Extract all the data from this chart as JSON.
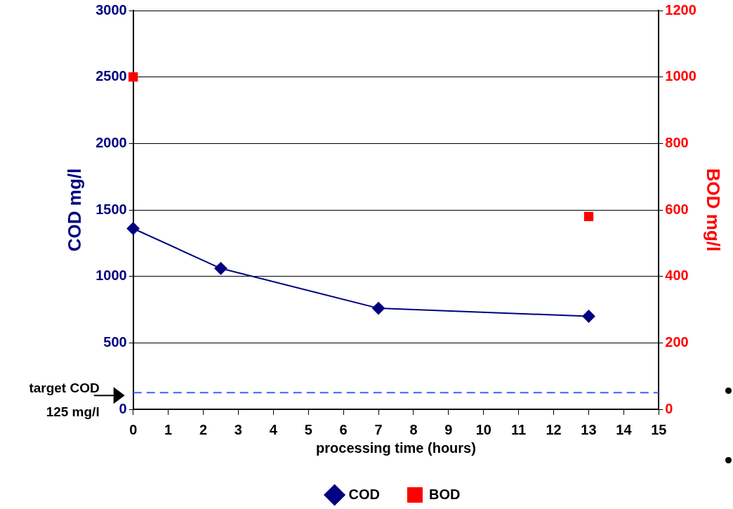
{
  "chart_data": {
    "type": "line",
    "xlabel": "processing time (hours)",
    "ylabel": "COD mg/l",
    "y2label": "BOD mg/l",
    "xlim": [
      0,
      15
    ],
    "xticks": [
      0,
      1,
      2,
      3,
      4,
      5,
      6,
      7,
      8,
      9,
      10,
      11,
      12,
      13,
      14,
      15
    ],
    "ylim": [
      0,
      3000
    ],
    "yticks": [
      0,
      500,
      1000,
      1500,
      2000,
      2500,
      3000
    ],
    "y2lim": [
      0,
      1200
    ],
    "y2ticks": [
      0,
      200,
      400,
      600,
      800,
      1000,
      1200
    ],
    "series": [
      {
        "name": "COD",
        "color": "#000080",
        "marker": "diamond",
        "x": [
          0,
          2.5,
          7,
          13
        ],
        "values": [
          1360,
          1060,
          760,
          700
        ]
      },
      {
        "name": "BOD",
        "type": "scatter",
        "color": "#ff0000",
        "marker": "square",
        "axis": "y2",
        "x": [
          0,
          13
        ],
        "values": [
          1000,
          580
        ]
      }
    ],
    "ref_lines": [
      {
        "axis": "y",
        "value": 125,
        "label": "target COD 125 mg/l",
        "color": "#3366ff",
        "line_style": "dashed"
      }
    ],
    "grid": "y",
    "legend": "bottom"
  }
}
